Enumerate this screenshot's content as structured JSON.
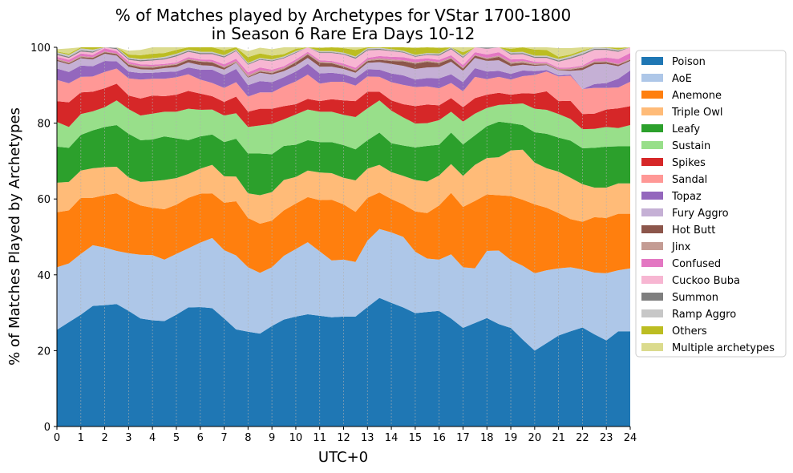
{
  "chart_data": {
    "type": "area",
    "stacked": true,
    "title_line1": "% of Matches played by Archetypes for VStar 1700-1800",
    "title_line2": "in Season 6 Rare Era Days 10-12",
    "xlabel": "UTC+0",
    "ylabel": "% of Matches Played by Archetypes",
    "xlim": [
      0,
      24
    ],
    "ylim": [
      0,
      100
    ],
    "x_ticks": [
      "0",
      "1",
      "2",
      "3",
      "4",
      "5",
      "6",
      "7",
      "8",
      "9",
      "10",
      "11",
      "12",
      "13",
      "14",
      "15",
      "16",
      "17",
      "18",
      "19",
      "20",
      "21",
      "22",
      "23",
      "24"
    ],
    "y_ticks": [
      "0",
      "20",
      "40",
      "60",
      "80",
      "100"
    ],
    "grid": "vertical",
    "legend_position": "right",
    "x": [
      0,
      0.5,
      1,
      1.5,
      2,
      2.5,
      3,
      3.5,
      4,
      4.5,
      5,
      5.5,
      6,
      6.5,
      7,
      7.5,
      8,
      8.5,
      9,
      9.5,
      10,
      10.5,
      11,
      11.5,
      12,
      12.5,
      13,
      13.5,
      14,
      14.5,
      15,
      15.5,
      16,
      16.5,
      17,
      17.5,
      18,
      18.5,
      19,
      19.5,
      20,
      20.5,
      21,
      21.5,
      22,
      22.5,
      23,
      23.5,
      24
    ],
    "series": [
      {
        "name": "Poison",
        "color": "#1f77b4",
        "values": [
          25.5,
          27.5,
          29.5,
          31.8,
          32.0,
          32.3,
          30.5,
          28.5,
          28.0,
          27.8,
          29.5,
          31.4,
          31.5,
          31.2,
          28.5,
          25.6,
          25.0,
          24.5,
          26.5,
          28.2,
          29.0,
          29.6,
          29.2,
          28.8,
          29.0,
          29.0,
          31.5,
          33.9,
          32.6,
          31.4,
          29.9,
          30.2,
          30.5,
          28.5,
          26.0,
          27.3,
          28.6,
          27.0,
          26.0,
          22.9,
          20.0,
          22.0,
          24.0,
          25.1,
          26.1,
          24.3,
          22.7,
          25.1,
          25.1
        ]
      },
      {
        "name": "AoE",
        "color": "#aec7e8",
        "values": [
          16.5,
          15.5,
          16.0,
          16.0,
          15.2,
          14.0,
          15.2,
          16.8,
          17.2,
          16.2,
          16.0,
          15.6,
          17.0,
          18.5,
          18.0,
          19.5,
          17.0,
          16.0,
          15.5,
          16.8,
          17.8,
          19.0,
          17.0,
          15.0,
          15.0,
          14.4,
          17.5,
          18.2,
          18.6,
          18.6,
          16.2,
          14.1,
          13.5,
          16.9,
          16.0,
          14.4,
          17.7,
          19.4,
          17.9,
          19.5,
          20.4,
          19.2,
          17.7,
          16.9,
          15.3,
          16.3,
          17.7,
          16.1,
          16.6
        ]
      },
      {
        "name": "Anemone",
        "color": "#ff7f0e",
        "values": [
          14.5,
          14.0,
          14.8,
          12.5,
          13.8,
          15.2,
          14.0,
          13.0,
          12.5,
          13.3,
          13.0,
          13.3,
          12.9,
          11.8,
          12.5,
          14.3,
          13.0,
          13.0,
          12.3,
          12.0,
          12.0,
          11.9,
          13.5,
          16.0,
          14.6,
          13.2,
          11.3,
          9.6,
          8.8,
          8.6,
          10.6,
          12.0,
          14.3,
          16.2,
          15.9,
          17.8,
          14.9,
          14.6,
          16.9,
          17.4,
          18.2,
          16.5,
          14.6,
          12.7,
          12.6,
          14.6,
          14.6,
          14.9,
          14.4
        ]
      },
      {
        "name": "Triple Owl",
        "color": "#ffbb78",
        "values": [
          7.8,
          7.5,
          7.2,
          7.8,
          7.4,
          7.0,
          6.0,
          6.2,
          7.0,
          7.7,
          7.0,
          6.3,
          6.6,
          7.5,
          7.0,
          6.5,
          6.5,
          7.5,
          7.5,
          8.0,
          7.0,
          7.0,
          7.3,
          7.0,
          7.0,
          8.3,
          7.7,
          7.3,
          7.1,
          7.5,
          8.3,
          8.3,
          7.9,
          7.6,
          8.2,
          9.5,
          9.6,
          10.0,
          12.0,
          13.2,
          11.0,
          10.4,
          10.9,
          10.9,
          9.9,
          7.8,
          8.0,
          8.0,
          8.0
        ]
      },
      {
        "name": "Leafy",
        "color": "#2ca02c",
        "values": [
          9.5,
          9.0,
          9.4,
          10.0,
          10.6,
          11.0,
          11.5,
          11.0,
          11.0,
          11.5,
          10.5,
          8.9,
          8.5,
          8.0,
          9.0,
          10.0,
          10.5,
          11.0,
          10.0,
          9.0,
          8.5,
          8.0,
          8.0,
          8.2,
          8.6,
          8.2,
          7.5,
          8.5,
          7.6,
          8.0,
          8.6,
          9.4,
          8.1,
          8.3,
          8.3,
          7.8,
          8.4,
          9.4,
          7.2,
          6.5,
          8.0,
          9.1,
          9.0,
          9.8,
          9.5,
          10.5,
          10.8,
          9.8,
          9.8
        ]
      },
      {
        "name": "Sustain",
        "color": "#98df8a",
        "values": [
          6.5,
          5.5,
          5.5,
          5.0,
          5.2,
          6.5,
          6.5,
          6.5,
          6.8,
          6.5,
          7.0,
          8.3,
          7.0,
          6.6,
          7.0,
          6.7,
          7.0,
          7.4,
          8.0,
          7.0,
          8.0,
          8.1,
          8.0,
          8.0,
          8.0,
          8.5,
          8.4,
          8.5,
          8.6,
          7.4,
          6.3,
          6.0,
          6.5,
          5.5,
          6.0,
          5.7,
          4.8,
          4.4,
          5.0,
          5.7,
          6.2,
          6.3,
          6.2,
          5.7,
          5.0,
          5.0,
          5.2,
          4.8,
          5.6
        ]
      },
      {
        "name": "Spikes",
        "color": "#d62728",
        "values": [
          5.5,
          6.5,
          5.7,
          5.2,
          5.0,
          4.4,
          3.6,
          4.5,
          4.8,
          4.1,
          4.5,
          4.7,
          4.3,
          3.5,
          3.6,
          4.4,
          4.0,
          4.4,
          4.0,
          3.5,
          2.7,
          2.8,
          2.8,
          3.3,
          3.8,
          4.2,
          4.4,
          2.3,
          2.7,
          3.5,
          4.6,
          4.9,
          3.9,
          3.6,
          3.8,
          4.1,
          3.5,
          3.2,
          2.5,
          2.7,
          4.0,
          4.9,
          3.4,
          4.8,
          4.0,
          4.0,
          4.6,
          5.2,
          5.0
        ]
      },
      {
        "name": "Sandal",
        "color": "#ff9896",
        "values": [
          5.6,
          5.0,
          4.1,
          4.0,
          4.3,
          4.0,
          4.5,
          5.0,
          4.4,
          4.6,
          4.6,
          4.4,
          3.7,
          3.5,
          3.7,
          3.8,
          4.0,
          4.3,
          4.3,
          5.2,
          6.0,
          6.4,
          4.6,
          4.6,
          4.9,
          4.1,
          4.0,
          3.9,
          4.8,
          5.1,
          5.0,
          4.8,
          4.5,
          4.0,
          4.2,
          5.6,
          4.1,
          4.2,
          4.0,
          4.5,
          4.9,
          5.2,
          6.5,
          6.6,
          6.6,
          6.8,
          5.7,
          5.5,
          6.4
        ]
      },
      {
        "name": "Topaz",
        "color": "#9467bd",
        "values": [
          3.0,
          3.0,
          3.0,
          2.7,
          2.9,
          1.9,
          1.8,
          1.7,
          1.6,
          1.8,
          1.5,
          1.8,
          2.6,
          3.5,
          3.4,
          3.5,
          3.0,
          3.0,
          2.7,
          2.4,
          2.6,
          2.8,
          2.7,
          2.4,
          2.0,
          2.0,
          1.9,
          1.9,
          2.3,
          2.5,
          2.0,
          2.2,
          2.6,
          2.3,
          2.4,
          2.3,
          2.0,
          1.6,
          1.5,
          1.5,
          1.0,
          0.4,
          0.3,
          0.3,
          0.0,
          1.0,
          1.3,
          2.3,
          3.0
        ]
      },
      {
        "name": "Fury Aggro",
        "color": "#c5b0d5",
        "values": [
          2.0,
          2.0,
          1.9,
          1.8,
          1.9,
          1.5,
          1.3,
          1.0,
          0.8,
          1.0,
          1.2,
          1.3,
          1.2,
          1.0,
          1.4,
          1.6,
          2.0,
          2.2,
          2.0,
          1.6,
          1.6,
          1.6,
          1.8,
          1.6,
          1.4,
          1.4,
          1.7,
          2.0,
          2.5,
          2.5,
          2.8,
          2.8,
          3.0,
          3.3,
          3.0,
          2.7,
          2.8,
          2.8,
          2.0,
          1.5,
          1.4,
          1.3,
          1.3,
          1.0,
          5.0,
          5.2,
          5.0,
          3.3,
          2.5
        ]
      },
      {
        "name": "Hot Butt",
        "color": "#8c564b",
        "values": [
          0.3,
          0.3,
          0.3,
          0.4,
          0.4,
          0.4,
          0.5,
          0.5,
          0.5,
          0.5,
          0.6,
          0.7,
          0.9,
          0.9,
          0.5,
          0.1,
          0.2,
          0.3,
          0.4,
          0.6,
          0.8,
          0.9,
          1.0,
          0.9,
          0.6,
          0.5,
          0.5,
          0.6,
          0.8,
          1.2,
          1.4,
          1.5,
          1.0,
          0.8,
          0.6,
          0.6,
          0.5,
          0.9,
          0.7,
          0.5,
          0.3,
          0.2,
          0.1,
          0.3,
          0.6,
          0.5,
          0.5,
          0.4,
          0.3
        ]
      },
      {
        "name": "Jinx",
        "color": "#c49c94",
        "values": [
          0.3,
          0.3,
          0.3,
          0.2,
          0.2,
          0.2,
          0.3,
          0.4,
          0.4,
          0.3,
          0.3,
          0.3,
          0.2,
          0.2,
          0.3,
          0.4,
          0.4,
          0.4,
          0.4,
          0.3,
          0.3,
          0.3,
          0.3,
          0.3,
          0.3,
          0.3,
          0.3,
          0.4,
          0.4,
          0.3,
          0.3,
          0.3,
          0.3,
          0.3,
          0.2,
          0.2,
          0.3,
          0.3,
          0.4,
          0.5,
          0.4,
          0.3,
          0.3,
          0.3,
          0.3,
          0.3,
          0.2,
          0.2,
          0.3
        ]
      },
      {
        "name": "Confused",
        "color": "#e377c2",
        "values": [
          0.5,
          0.6,
          0.7,
          0.6,
          0.8,
          0.6,
          0.5,
          0.4,
          0.4,
          0.3,
          0.3,
          0.4,
          0.4,
          0.5,
          0.6,
          0.6,
          0.8,
          0.7,
          0.5,
          0.4,
          0.5,
          0.4,
          0.4,
          0.3,
          0.5,
          0.5,
          0.5,
          0.6,
          0.7,
          0.8,
          0.8,
          0.6,
          0.6,
          0.6,
          0.7,
          0.7,
          0.9,
          0.9,
          0.7,
          0.5,
          0.4,
          0.3,
          0.3,
          0.3,
          0.3,
          0.6,
          1.0,
          1.3,
          1.5
        ]
      },
      {
        "name": "Cuckoo Buba",
        "color": "#f7b6d2",
        "values": [
          0.5,
          0.5,
          0.5,
          0.6,
          0.8,
          0.5,
          0.5,
          0.8,
          1.1,
          1.2,
          1.6,
          1.4,
          1.4,
          1.5,
          1.8,
          2.0,
          2.0,
          2.0,
          2.2,
          2.1,
          1.7,
          1.7,
          1.9,
          2.1,
          2.4,
          2.4,
          2.0,
          1.6,
          1.5,
          1.2,
          0.7,
          0.9,
          1.1,
          1.6,
          1.9,
          1.9,
          1.5,
          1.4,
          1.3,
          1.3,
          1.0,
          1.1,
          1.6,
          2.3,
          2.8,
          2.4,
          2.0,
          1.9,
          1.9
        ]
      },
      {
        "name": "Summon",
        "color": "#7f7f7f",
        "values": [
          0.3,
          0.3,
          0.3,
          0.3,
          0.3,
          0.3,
          0.3,
          0.3,
          0.3,
          0.3,
          0.3,
          0.3,
          0.3,
          0.3,
          0.3,
          0.2,
          0.2,
          0.2,
          0.2,
          0.2,
          0.2,
          0.2,
          0.2,
          0.2,
          0.2,
          0.3,
          0.3,
          0.3,
          0.2,
          0.2,
          0.2,
          0.2,
          0.3,
          0.3,
          0.3,
          0.3,
          0.3,
          0.3,
          0.3,
          0.3,
          0.3,
          0.3,
          0.3,
          0.3,
          0.3,
          0.3,
          0.3,
          0.3,
          0.3
        ]
      },
      {
        "name": "Ramp Aggro",
        "color": "#c7c7c7",
        "values": [
          0.4,
          0.5,
          0.5,
          0.5,
          0.4,
          0.4,
          0.3,
          0.3,
          0.3,
          0.4,
          0.4,
          0.3,
          0.3,
          0.3,
          0.3,
          0.3,
          0.3,
          0.3,
          0.3,
          0.3,
          0.3,
          0.3,
          0.3,
          0.3,
          0.3,
          0.3,
          0.3,
          0.3,
          0.3,
          0.3,
          0.3,
          0.3,
          0.3,
          0.3,
          0.3,
          0.3,
          0.3,
          0.3,
          0.3,
          0.3,
          0.3,
          0.3,
          0.4,
          0.4,
          0.5,
          0.4,
          0.3,
          0.3,
          0.3
        ]
      },
      {
        "name": "Others",
        "color": "#bcbd22",
        "values": [
          0.2,
          0.3,
          0.4,
          0.6,
          0.6,
          0.5,
          0.8,
          1.0,
          1.2,
          1.0,
          1.0,
          0.9,
          1.2,
          1.5,
          1.3,
          1.2,
          1.5,
          1.2,
          1.0,
          0.6,
          0.6,
          0.5,
          0.8,
          1.0,
          1.2,
          1.7,
          1.8,
          1.7,
          1.3,
          1.2,
          1.8,
          1.8,
          1.4,
          1.2,
          0.9,
          0.7,
          0.5,
          0.4,
          0.9,
          1.2,
          1.6,
          1.5,
          0.6,
          0.4,
          0.4,
          0.3,
          0.4,
          0.4,
          0.4
        ]
      },
      {
        "name": "Multiple archetypes",
        "color": "#dbdb8d",
        "values": [
          0.6,
          1.4,
          1.6,
          1.5,
          0.0,
          0.0,
          1.0,
          1.4,
          1.7,
          1.9,
          1.5,
          0.9,
          0.8,
          0.8,
          1.3,
          1.4,
          1.6,
          1.5,
          1.7,
          1.8,
          1.1,
          0.6,
          0.9,
          1.7,
          1.4,
          1.5,
          1.1,
          1.0,
          1.1,
          1.5,
          1.9,
          1.4,
          1.6,
          1.6,
          1.6,
          1.9,
          1.8,
          1.0,
          1.7,
          3.0,
          3.6,
          3.3,
          2.3,
          1.7,
          1.2,
          1.1,
          1.0,
          0.7,
          0.3
        ]
      }
    ]
  }
}
